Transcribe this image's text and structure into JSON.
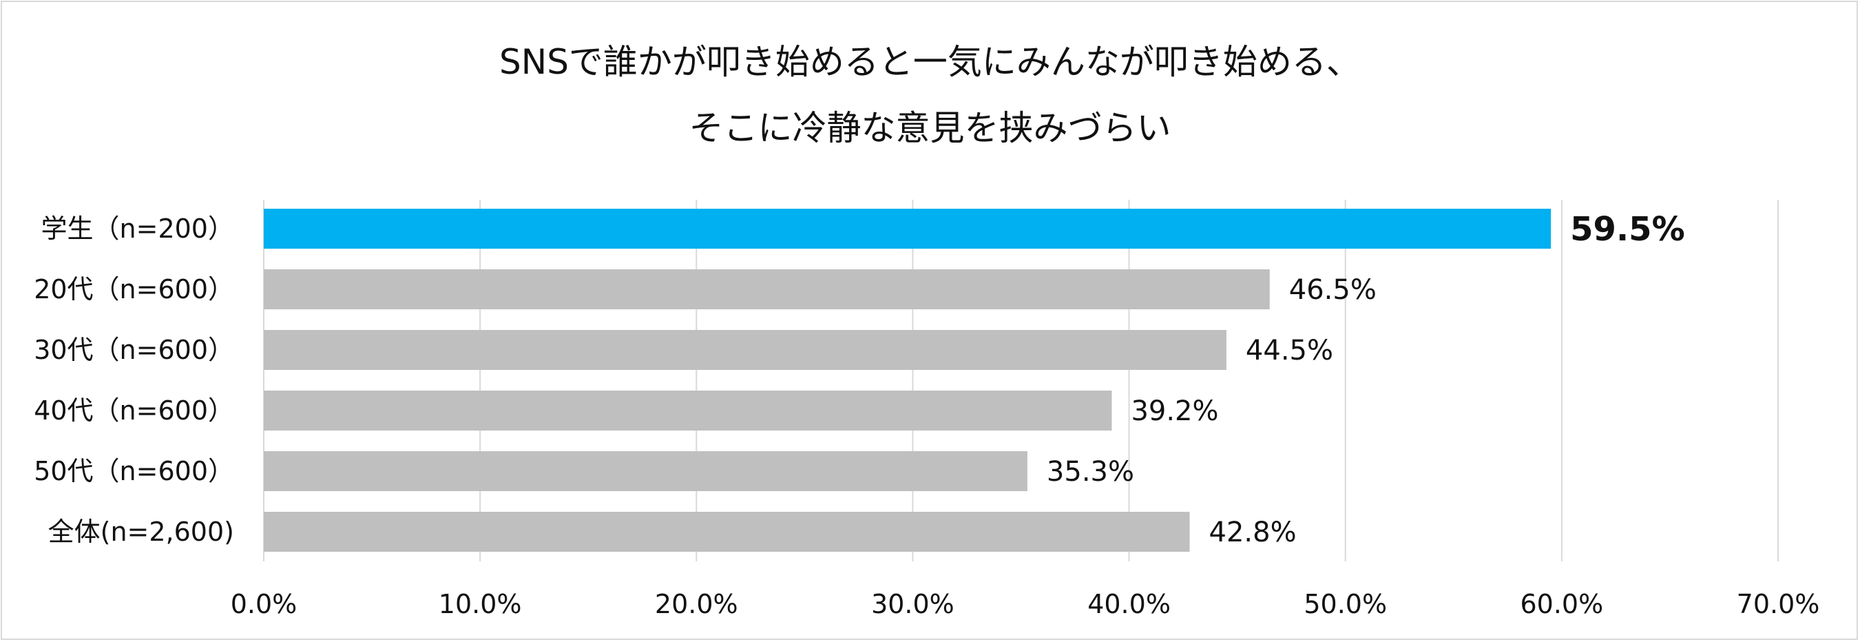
{
  "chart_data": {
    "type": "bar",
    "orientation": "horizontal",
    "title_lines": [
      "SNSで誰かが叩き始めると一気にみんなが叩き始める、",
      "そこに冷静な意見を挟みづらい"
    ],
    "categories": [
      "学生（n=200）",
      "20代（n=600）",
      "30代（n=600）",
      "40代（n=600）",
      "50代（n=600）",
      "全体(n=2,600)"
    ],
    "values": [
      59.5,
      46.5,
      44.5,
      39.2,
      35.3,
      42.8
    ],
    "data_labels": [
      "59.5%",
      "46.5%",
      "44.5%",
      "39.2%",
      "35.3%",
      "42.8%"
    ],
    "highlight_index": 0,
    "xlim": [
      0,
      70
    ],
    "xticks": [
      0,
      10,
      20,
      30,
      40,
      50,
      60,
      70
    ],
    "xtick_labels": [
      "0.0%",
      "10.0%",
      "20.0%",
      "30.0%",
      "40.0%",
      "50.0%",
      "60.0%",
      "70.0%"
    ],
    "grid": true,
    "colors": {
      "highlight": "#00b0f0",
      "default": "#bfbfbf",
      "grid": "#d9d9d9",
      "text": "#111111"
    }
  }
}
